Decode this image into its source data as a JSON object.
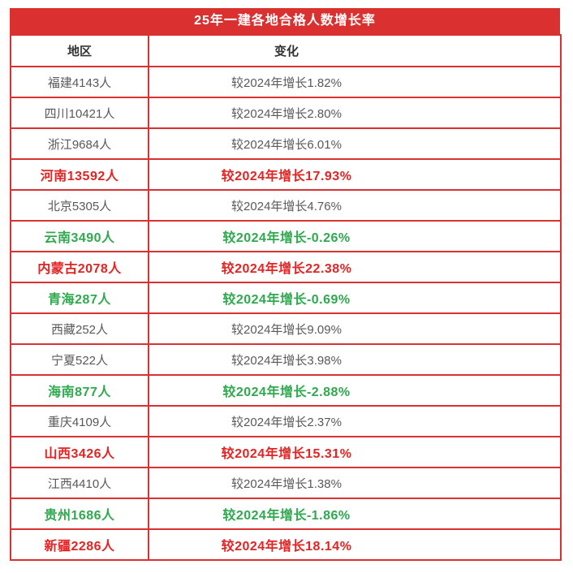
{
  "title": "25年一建各地合格人数增长率",
  "colors": {
    "title_bar_background": "#db3030",
    "table_border": "#d93030",
    "title_text": "#ffffff",
    "header_text": "#333333",
    "normal_text": "#595959",
    "increase_highlight_text": "#e62222",
    "decrease_highlight_text": "#2ea94e"
  },
  "table": {
    "headers": {
      "region": "地区",
      "change": "变化"
    },
    "rows": [
      {
        "region": "福建4143人",
        "change": "较2024年增长1.82%",
        "style": "normal"
      },
      {
        "region": "四川10421人",
        "change": "较2024年增长2.80%",
        "style": "normal"
      },
      {
        "region": "浙江9684人",
        "change": "较2024年增长6.01%",
        "style": "normal"
      },
      {
        "region": "河南13592人",
        "change": "较2024年增长17.93%",
        "style": "red"
      },
      {
        "region": "北京5305人",
        "change": "较2024年增长4.76%",
        "style": "normal"
      },
      {
        "region": "云南3490人",
        "change": "较2024年增长-0.26%",
        "style": "green"
      },
      {
        "region": "内蒙古2078人",
        "change": "较2024年增长22.38%",
        "style": "red"
      },
      {
        "region": "青海287人",
        "change": "较2024年增长-0.69%",
        "style": "green"
      },
      {
        "region": "西藏252人",
        "change": "较2024年增长9.09%",
        "style": "normal"
      },
      {
        "region": "宁夏522人",
        "change": "较2024年增长3.98%",
        "style": "normal"
      },
      {
        "region": "海南877人",
        "change": "较2024年增长-2.88%",
        "style": "green"
      },
      {
        "region": "重庆4109人",
        "change": "较2024年增长2.37%",
        "style": "normal"
      },
      {
        "region": "山西3426人",
        "change": "较2024年增长15.31%",
        "style": "red"
      },
      {
        "region": "江西4410人",
        "change": "较2024年增长1.38%",
        "style": "normal"
      },
      {
        "region": "贵州1686人",
        "change": "较2024年增长-1.86%",
        "style": "green"
      },
      {
        "region": "新疆2286人",
        "change": "较2024年增长18.14%",
        "style": "red"
      }
    ]
  },
  "chart_data": {
    "type": "table",
    "title": "25年一建各地合格人数增长率",
    "columns": [
      "地区",
      "变化"
    ],
    "regions": [
      "福建",
      "四川",
      "浙江",
      "河南",
      "北京",
      "云南",
      "内蒙古",
      "青海",
      "西藏",
      "宁夏",
      "海南",
      "重庆",
      "山西",
      "江西",
      "贵州",
      "新疆"
    ],
    "passed_counts": [
      4143,
      10421,
      9684,
      13592,
      5305,
      3490,
      2078,
      287,
      252,
      522,
      877,
      4109,
      3426,
      4410,
      1686,
      2286
    ],
    "growth_vs_2024_percent": [
      1.82,
      2.8,
      6.01,
      17.93,
      4.76,
      -0.26,
      22.38,
      -0.69,
      9.09,
      3.98,
      -2.88,
      2.37,
      15.31,
      1.38,
      -1.86,
      18.14
    ],
    "highlight": [
      "none",
      "none",
      "none",
      "red",
      "none",
      "green",
      "red",
      "green",
      "none",
      "none",
      "green",
      "none",
      "red",
      "none",
      "green",
      "red"
    ]
  }
}
